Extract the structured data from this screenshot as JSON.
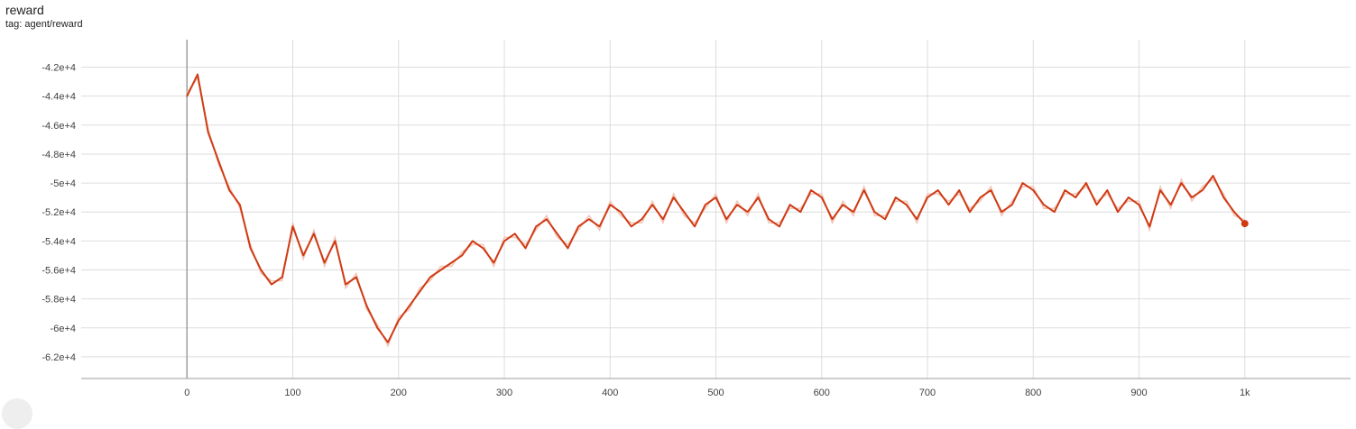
{
  "chart_title": "reward",
  "chart_tag": "tag: agent/reward",
  "colors": {
    "line": "#cf3a13",
    "raw_line": "#f2c4b6",
    "grid": "#dddddd",
    "axis": "#9e9e9e",
    "tick_text": "#424242"
  },
  "chart_data": {
    "type": "line",
    "title": "reward",
    "xlabel": "",
    "ylabel": "",
    "xlim": [
      -100,
      1100
    ],
    "ylim": [
      -63500,
      -40100
    ],
    "x_ticks": [
      0,
      100,
      200,
      300,
      400,
      500,
      600,
      700,
      800,
      900,
      1000
    ],
    "x_tick_labels": [
      "0",
      "100",
      "200",
      "300",
      "400",
      "500",
      "600",
      "700",
      "800",
      "900",
      "1k"
    ],
    "y_ticks": [
      -42000,
      -44000,
      -46000,
      -48000,
      -50000,
      -52000,
      -54000,
      -56000,
      -58000,
      -60000,
      -62000
    ],
    "y_tick_labels": [
      "-4.2e+4",
      "-4.4e+4",
      "-4.6e+4",
      "-4.8e+4",
      "-5e+4",
      "-5.2e+4",
      "-5.4e+4",
      "-5.6e+4",
      "-5.8e+4",
      "-6e+4",
      "-6.2e+4"
    ],
    "grid": true,
    "series": [
      {
        "x": [
          0,
          10,
          20,
          30,
          40,
          50,
          60,
          70,
          80,
          90,
          100,
          110,
          120,
          130,
          140,
          150,
          160,
          170,
          180,
          190,
          200,
          210,
          220,
          230,
          240,
          250,
          260,
          270,
          280,
          290,
          300,
          310,
          320,
          330,
          340,
          350,
          360,
          370,
          380,
          390,
          400,
          410,
          420,
          430,
          440,
          450,
          460,
          470,
          480,
          490,
          500,
          510,
          520,
          530,
          540,
          550,
          560,
          570,
          580,
          590,
          600,
          610,
          620,
          630,
          640,
          650,
          660,
          670,
          680,
          690,
          700,
          710,
          720,
          730,
          740,
          750,
          760,
          770,
          780,
          790,
          800,
          810,
          820,
          830,
          840,
          850,
          860,
          870,
          880,
          890,
          900,
          910,
          920,
          930,
          940,
          950,
          960,
          970,
          980,
          990,
          1000
        ],
        "values": [
          -44000,
          -42500,
          -46500,
          -48500,
          -50500,
          -51500,
          -54500,
          -56000,
          -57000,
          -56500,
          -53000,
          -55000,
          -53500,
          -55500,
          -54000,
          -57000,
          -56500,
          -58500,
          -60000,
          -61000,
          -59500,
          -58500,
          -57500,
          -56500,
          -56000,
          -55500,
          -55000,
          -54000,
          -54500,
          -55500,
          -54000,
          -53500,
          -54500,
          -53000,
          -52500,
          -53500,
          -54500,
          -53000,
          -52500,
          -53000,
          -51500,
          -52000,
          -53000,
          -52500,
          -51500,
          -52500,
          -51000,
          -52000,
          -53000,
          -51500,
          -51000,
          -52500,
          -51500,
          -52000,
          -51000,
          -52500,
          -53000,
          -51500,
          -52000,
          -50500,
          -51000,
          -52500,
          -51500,
          -52000,
          -50500,
          -52000,
          -52500,
          -51000,
          -51500,
          -52500,
          -51000,
          -50500,
          -51500,
          -50500,
          -52000,
          -51000,
          -50500,
          -52000,
          -51500,
          -50000,
          -50500,
          -51500,
          -52000,
          -50500,
          -51000,
          -50000,
          -51500,
          -50500,
          -52000,
          -51000,
          -51500,
          -53000,
          -50500,
          -51500,
          -50000,
          -51000,
          -50500,
          -49500,
          -51000,
          -52000,
          -52800
        ]
      }
    ]
  }
}
